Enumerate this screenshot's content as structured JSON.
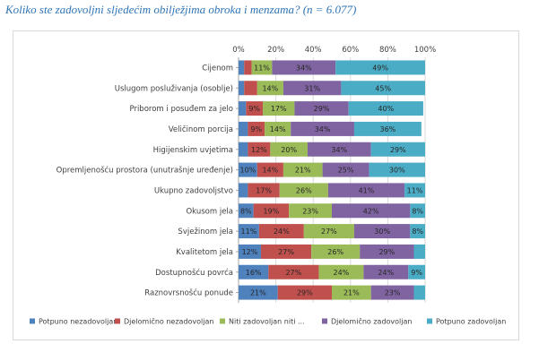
{
  "caption": "Koliko ste zadovoljni sljedećim obilježjima obroka i menzama? (n = 6.077)",
  "chart_data": {
    "type": "bar",
    "orientation": "horizontal",
    "stacked": "percent",
    "title": "Koliko ste zadovoljni sljedećim obilježjima obroka i menzama? (n = 6.077)",
    "xlim": [
      0,
      100
    ],
    "x_ticks": [
      "0%",
      "20%",
      "40%",
      "60%",
      "80%",
      "100%"
    ],
    "x_axis_position": "top",
    "grid": true,
    "legend_position": "bottom",
    "categories": [
      "Cijenom",
      "Uslugom posluživanja (osoblje)",
      "Priborom i posuđem za jelo",
      "Veličinom porcija",
      "Higijenskim uvjetima",
      "Opremljenošću prostora (unutrašnje uređenje)",
      "Ukupno zadovoljstvo",
      "Okusom jela",
      "Svježinom jela",
      "Kvalitetom jela",
      "Dostupnošću povrća",
      "Raznovrsnošću ponude"
    ],
    "series": [
      {
        "name": "Potpuno nezadovoljan",
        "color": "#4f81bd",
        "values": [
          3,
          3,
          4,
          5,
          5,
          10,
          5,
          8,
          11,
          12,
          16,
          21
        ],
        "labels": [
          "",
          "",
          "",
          "",
          "",
          "10%",
          "",
          "8%",
          "11%",
          "12%",
          "16%",
          "21%"
        ]
      },
      {
        "name": "Djelomično nezadovoljan",
        "color": "#c0504d",
        "values": [
          4,
          7,
          9,
          9,
          12,
          14,
          17,
          19,
          24,
          27,
          27,
          29
        ],
        "labels": [
          "",
          "",
          "9%",
          "9%",
          "12%",
          "14%",
          "17%",
          "19%",
          "24%",
          "27%",
          "27%",
          "29%"
        ]
      },
      {
        "name": "Niti zadovoljan niti ...",
        "color": "#9bbb59",
        "values": [
          11,
          14,
          17,
          14,
          20,
          21,
          26,
          23,
          27,
          26,
          24,
          21
        ],
        "labels": [
          "11%",
          "14%",
          "17%",
          "14%",
          "20%",
          "21%",
          "26%",
          "23%",
          "27%",
          "26%",
          "24%",
          "21%"
        ]
      },
      {
        "name": "Djelomično zadovoljan",
        "color": "#8064a2",
        "values": [
          34,
          31,
          29,
          34,
          34,
          25,
          41,
          42,
          30,
          29,
          24,
          23
        ],
        "labels": [
          "34%",
          "31%",
          "29%",
          "34%",
          "34%",
          "25%",
          "41%",
          "42%",
          "30%",
          "29%",
          "24%",
          "23%"
        ]
      },
      {
        "name": "Potpuno zadovoljan",
        "color": "#4bacc6",
        "values": [
          49,
          45,
          40,
          36,
          29,
          30,
          11,
          8,
          8,
          6,
          9,
          6
        ],
        "labels": [
          "49%",
          "45%",
          "40%",
          "36%",
          "29%",
          "30%",
          "11%",
          "8%",
          "8%",
          "",
          "9%",
          ""
        ]
      }
    ]
  }
}
